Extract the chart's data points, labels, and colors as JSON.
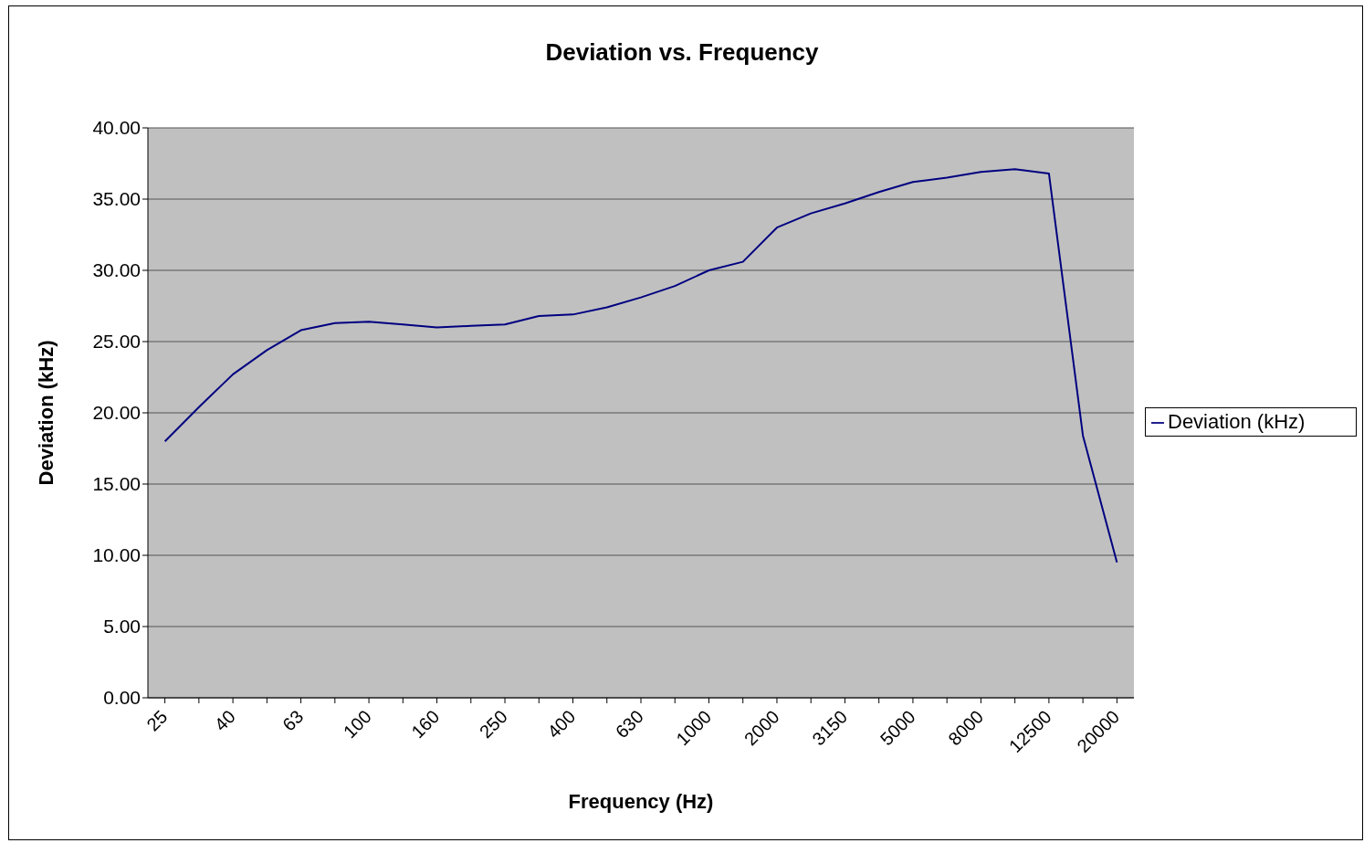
{
  "chart_data": {
    "type": "line",
    "title": "Deviation vs. Frequency",
    "xlabel": "Frequency (Hz)",
    "ylabel": "Deviation (kHz)",
    "categories": [
      "25",
      null,
      "40",
      null,
      "63",
      null,
      "100",
      null,
      "160",
      null,
      "250",
      null,
      "400",
      null,
      "630",
      null,
      "1000",
      null,
      "2000",
      null,
      "3150",
      null,
      "5000",
      null,
      "8000",
      null,
      "12500",
      null,
      "20000"
    ],
    "series": [
      {
        "name": "Deviation (kHz)",
        "color": "#000080",
        "values": [
          18.0,
          20.4,
          22.7,
          24.4,
          25.8,
          26.3,
          26.4,
          26.2,
          26.0,
          26.1,
          26.2,
          26.8,
          26.9,
          27.4,
          28.1,
          28.9,
          30.0,
          30.6,
          33.0,
          34.0,
          34.7,
          35.5,
          36.2,
          36.5,
          36.9,
          37.1,
          36.8,
          18.4,
          9.5
        ]
      }
    ],
    "ylim": [
      0,
      40
    ],
    "yticks": [
      {
        "value": 0,
        "label": "0.00"
      },
      {
        "value": 5,
        "label": "5.00"
      },
      {
        "value": 10,
        "label": "10.00"
      },
      {
        "value": 15,
        "label": "15.00"
      },
      {
        "value": 20,
        "label": "20.00"
      },
      {
        "value": 25,
        "label": "25.00"
      },
      {
        "value": 30,
        "label": "30.00"
      },
      {
        "value": 35,
        "label": "35.00"
      },
      {
        "value": 40,
        "label": "40.00"
      }
    ],
    "grid": "y",
    "legend": "right",
    "marker": "none",
    "line_style": "solid"
  }
}
